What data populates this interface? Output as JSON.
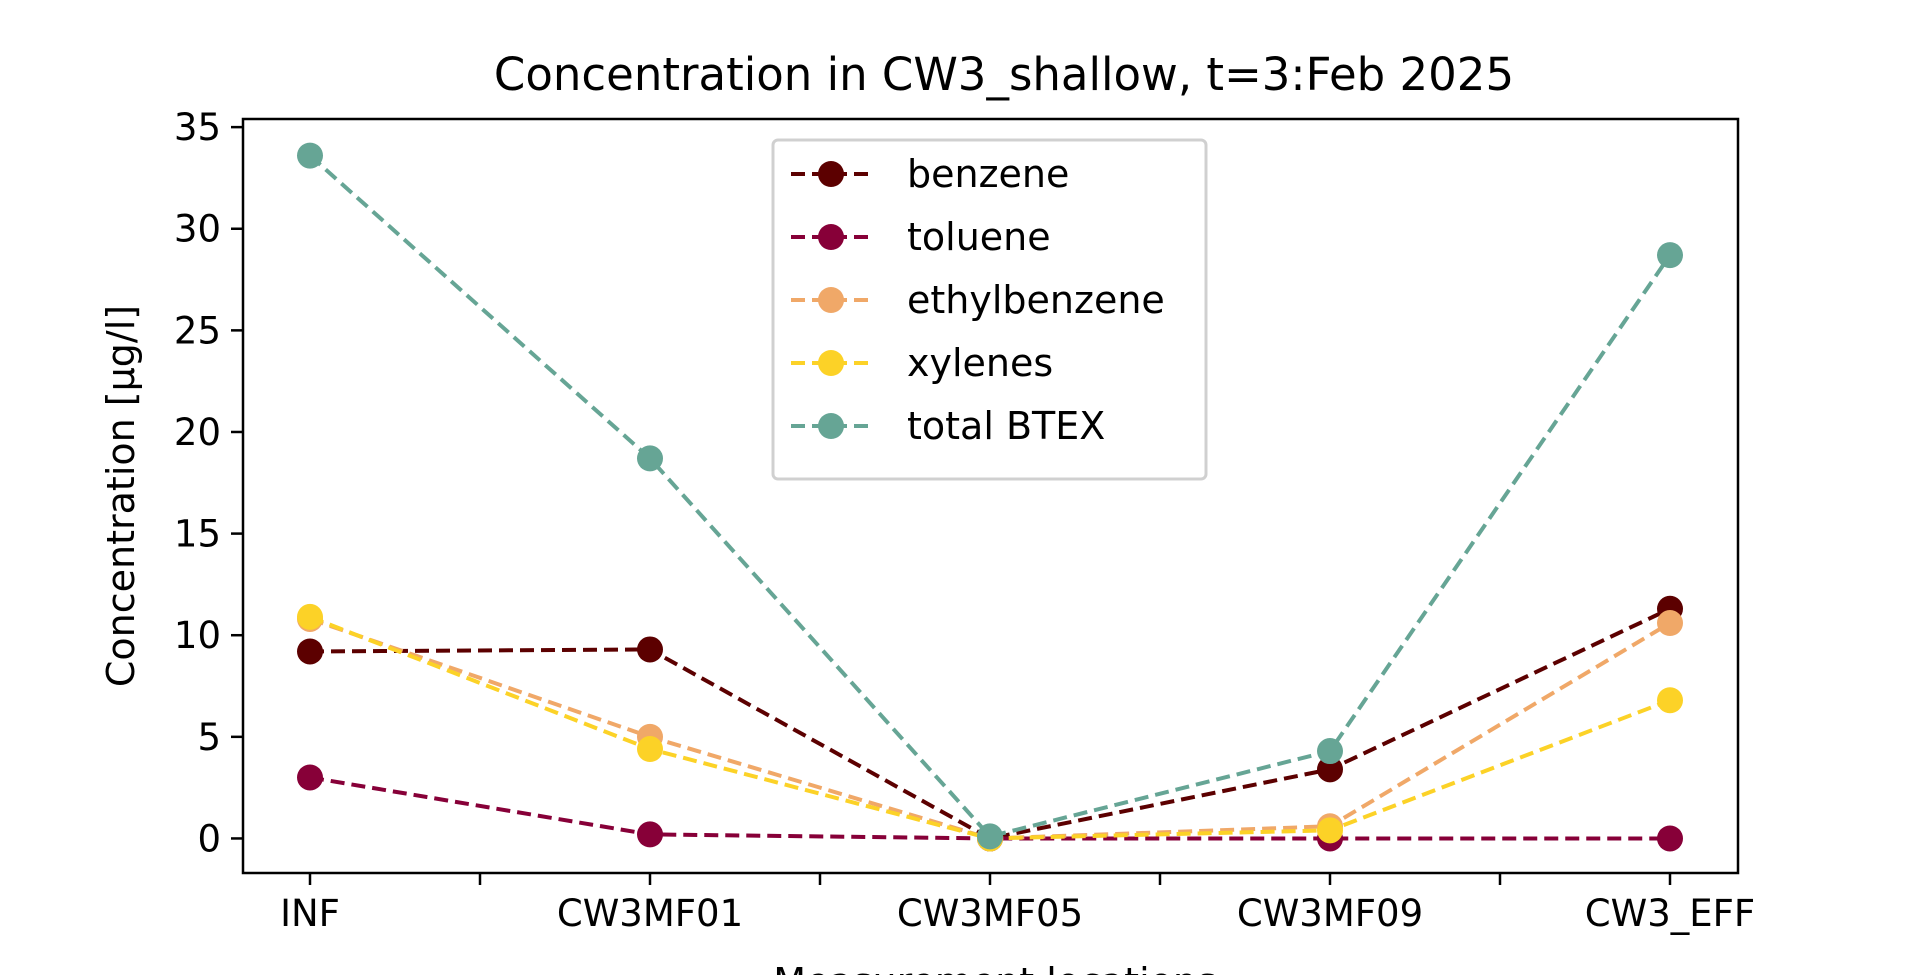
{
  "chart_data": {
    "type": "line",
    "title": "Concentration in CW3_shallow, t=3:Feb 2025",
    "xlabel": "Measurement locations",
    "ylabel": "Concentration [µg/l]",
    "categories": [
      "INF",
      "CW3MF01",
      "CW3MF05",
      "CW3MF09",
      "CW3_EFF"
    ],
    "ylim": [
      -1.7,
      35.4
    ],
    "yticks": [
      0,
      5,
      10,
      15,
      20,
      25,
      30,
      35
    ],
    "grid": false,
    "legend_position": "upper center",
    "line_style": "dashed",
    "marker": "circle",
    "series": [
      {
        "name": "benzene",
        "color": "#5c0000",
        "values": [
          9.2,
          9.3,
          0.0,
          3.4,
          11.3
        ]
      },
      {
        "name": "toluene",
        "color": "#870038",
        "values": [
          3.0,
          0.2,
          0.0,
          0.0,
          0.0
        ]
      },
      {
        "name": "ethylbenzene",
        "color": "#f0a868",
        "values": [
          10.8,
          5.0,
          0.0,
          0.6,
          10.6
        ]
      },
      {
        "name": "xylenes",
        "color": "#fcd227",
        "values": [
          10.9,
          4.4,
          0.0,
          0.4,
          6.8
        ]
      },
      {
        "name": "total BTEX",
        "color": "#66a595",
        "values": [
          33.6,
          18.7,
          0.1,
          4.3,
          28.7
        ]
      }
    ]
  }
}
